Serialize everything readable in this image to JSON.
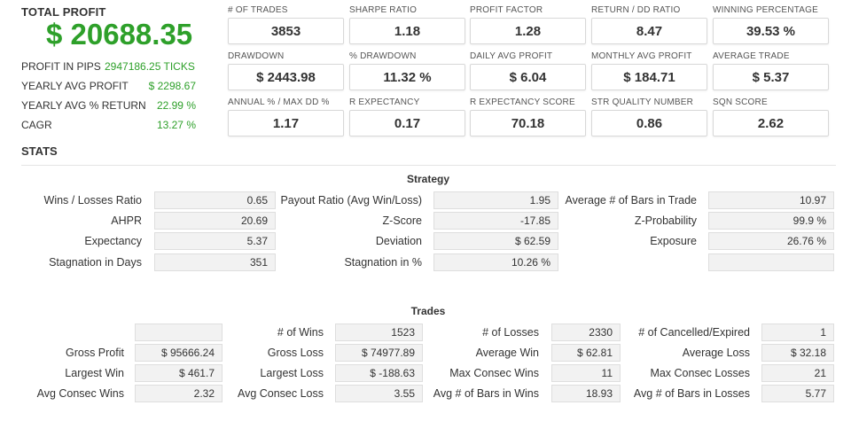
{
  "summary": {
    "total_label": "TOTAL PROFIT",
    "total_value": "$ 20688.35",
    "rows": [
      {
        "label": "PROFIT IN PIPS",
        "value": "2947186.25 TICKS"
      },
      {
        "label": "YEARLY AVG PROFIT",
        "value": "$ 2298.67"
      },
      {
        "label": "YEARLY AVG % RETURN",
        "value": "22.99 %"
      },
      {
        "label": "CAGR",
        "value": "13.27 %"
      }
    ]
  },
  "kpis": [
    {
      "label": "# OF TRADES",
      "value": "3853"
    },
    {
      "label": "SHARPE RATIO",
      "value": "1.18"
    },
    {
      "label": "PROFIT FACTOR",
      "value": "1.28"
    },
    {
      "label": "RETURN / DD RATIO",
      "value": "8.47"
    },
    {
      "label": "WINNING PERCENTAGE",
      "value": "39.53 %"
    },
    {
      "label": "DRAWDOWN",
      "value": "$ 2443.98"
    },
    {
      "label": "% DRAWDOWN",
      "value": "11.32 %"
    },
    {
      "label": "DAILY AVG PROFIT",
      "value": "$ 6.04"
    },
    {
      "label": "MONTHLY AVG PROFIT",
      "value": "$ 184.71"
    },
    {
      "label": "AVERAGE TRADE",
      "value": "$ 5.37"
    },
    {
      "label": "ANNUAL % / MAX DD %",
      "value": "1.17"
    },
    {
      "label": "R EXPECTANCY",
      "value": "0.17"
    },
    {
      "label": "R EXPECTANCY SCORE",
      "value": "70.18"
    },
    {
      "label": "STR QUALITY NUMBER",
      "value": "0.86"
    },
    {
      "label": "SQN SCORE",
      "value": "2.62"
    }
  ],
  "stats_title": "STATS",
  "strategy": {
    "title": "Strategy",
    "rows": [
      [
        {
          "label": "Wins / Losses Ratio",
          "value": "0.65"
        },
        {
          "label": "Payout Ratio (Avg Win/Loss)",
          "value": "1.95"
        },
        {
          "label": "Average # of Bars in Trade",
          "value": "10.97"
        }
      ],
      [
        {
          "label": "AHPR",
          "value": "20.69"
        },
        {
          "label": "Z-Score",
          "value": "-17.85"
        },
        {
          "label": "Z-Probability",
          "value": "99.9 %"
        }
      ],
      [
        {
          "label": "Expectancy",
          "value": "5.37"
        },
        {
          "label": "Deviation",
          "value": "$ 62.59"
        },
        {
          "label": "Exposure",
          "value": "26.76 %"
        }
      ],
      [
        {
          "label": "Stagnation in Days",
          "value": "351"
        },
        {
          "label": "Stagnation in %",
          "value": "10.26 %"
        },
        {
          "label": "",
          "value": ""
        }
      ]
    ]
  },
  "trades": {
    "title": "Trades",
    "rows": [
      [
        {
          "label": "",
          "value": ""
        },
        {
          "label": "# of Wins",
          "value": "1523"
        },
        {
          "label": "# of Losses",
          "value": "2330"
        },
        {
          "label": "# of Cancelled/Expired",
          "value": "1"
        }
      ],
      [
        {
          "label": "Gross Profit",
          "value": "$ 95666.24"
        },
        {
          "label": "Gross Loss",
          "value": "$ 74977.89"
        },
        {
          "label": "Average Win",
          "value": "$ 62.81"
        },
        {
          "label": "Average Loss",
          "value": "$ 32.18"
        }
      ],
      [
        {
          "label": "Largest Win",
          "value": "$ 461.7"
        },
        {
          "label": "Largest Loss",
          "value": "$ -188.63"
        },
        {
          "label": "Max Consec Wins",
          "value": "11"
        },
        {
          "label": "Max Consec Losses",
          "value": "21"
        }
      ],
      [
        {
          "label": "Avg Consec Wins",
          "value": "2.32"
        },
        {
          "label": "Avg Consec Loss",
          "value": "3.55"
        },
        {
          "label": "Avg # of Bars in Wins",
          "value": "18.93"
        },
        {
          "label": "Avg # of Bars in Losses",
          "value": "5.77"
        }
      ]
    ]
  }
}
